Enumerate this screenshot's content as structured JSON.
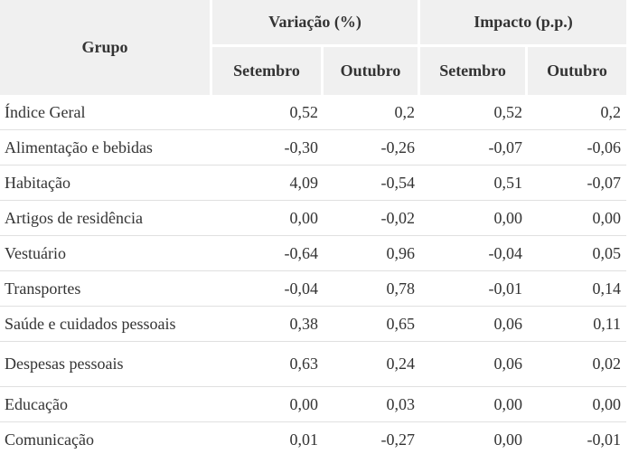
{
  "table": {
    "header": {
      "group": "Grupo",
      "variacao": "Variação (%)",
      "impacto": "Impacto (p.p.)",
      "sub": [
        "Setembro",
        "Outubro",
        "Setembro",
        "Outubro"
      ]
    },
    "rows": [
      {
        "grupo": "Índice Geral",
        "var_set": "0,52",
        "var_out": "0,2",
        "imp_set": "0,52",
        "imp_out": "0,2"
      },
      {
        "grupo": "Alimentação e bebidas",
        "var_set": "-0,30",
        "var_out": "-0,26",
        "imp_set": "-0,07",
        "imp_out": "-0,06"
      },
      {
        "grupo": "Habitação",
        "var_set": "4,09",
        "var_out": "-0,54",
        "imp_set": "0,51",
        "imp_out": "-0,07"
      },
      {
        "grupo": "Artigos de residência",
        "var_set": "0,00",
        "var_out": "-0,02",
        "imp_set": "0,00",
        "imp_out": "0,00"
      },
      {
        "grupo": "Vestuário",
        "var_set": "-0,64",
        "var_out": "0,96",
        "imp_set": "-0,04",
        "imp_out": "0,05"
      },
      {
        "grupo": "Transportes",
        "var_set": "-0,04",
        "var_out": "0,78",
        "imp_set": "-0,01",
        "imp_out": "0,14"
      },
      {
        "grupo": "Saúde e cuidados pessoais",
        "var_set": "0,38",
        "var_out": "0,65",
        "imp_set": "0,06",
        "imp_out": "0,11"
      },
      {
        "grupo": "Despesas pessoais",
        "var_set": "0,63",
        "var_out": "0,24",
        "imp_set": "0,06",
        "imp_out": "0,02"
      },
      {
        "grupo": "Educação",
        "var_set": "0,00",
        "var_out": "0,03",
        "imp_set": "0,00",
        "imp_out": "0,00"
      },
      {
        "grupo": "Comunicação",
        "var_set": "0,01",
        "var_out": "-0,27",
        "imp_set": "0,00",
        "imp_out": "-0,01"
      }
    ]
  }
}
